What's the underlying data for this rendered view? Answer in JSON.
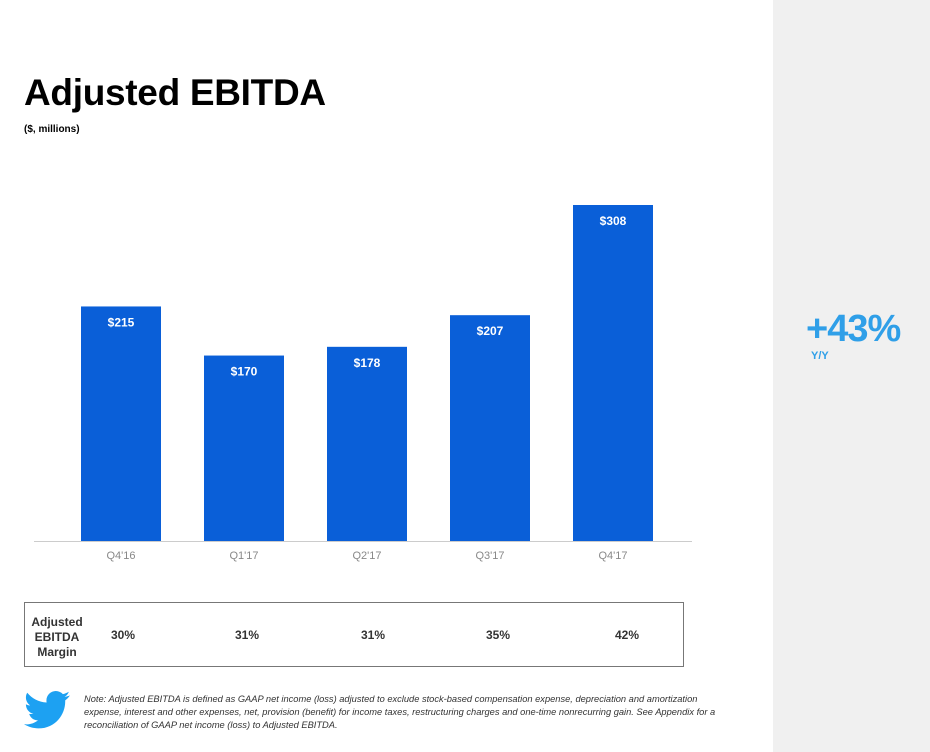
{
  "title": "Adjusted EBITDA",
  "subtitle": "($, millions)",
  "growth": {
    "value": "+43%",
    "label": "Y/Y"
  },
  "margin_row": {
    "label": "Adjusted EBITDA Margin",
    "values": [
      "30%",
      "31%",
      "31%",
      "35%",
      "42%"
    ]
  },
  "note": "Note: Adjusted EBITDA is defined as GAAP net income (loss) adjusted to exclude stock-based compensation expense, depreciation and amortization expense, interest and other expenses, net, provision (benefit) for income taxes, restructuring charges and one-time nonrecurring gain. See Appendix for a reconciliation of GAAP net income (loss) to Adjusted EBITDA.",
  "icons": {
    "logo": "twitter-bird-icon"
  },
  "colors": {
    "bar": "#0a5fd8",
    "accent": "#2f9fe8",
    "panel": "#f0f0f0"
  },
  "chart_data": {
    "type": "bar",
    "categories": [
      "Q4'16",
      "Q1'17",
      "Q2'17",
      "Q3'17",
      "Q4'17"
    ],
    "values": [
      215,
      170,
      178,
      207,
      308
    ],
    "value_labels": [
      "$215",
      "$170",
      "$178",
      "$207",
      "$308"
    ],
    "title": "Adjusted EBITDA",
    "xlabel": "",
    "ylabel": "",
    "ylim": [
      0,
      308
    ],
    "grid": false,
    "legend": "none"
  }
}
